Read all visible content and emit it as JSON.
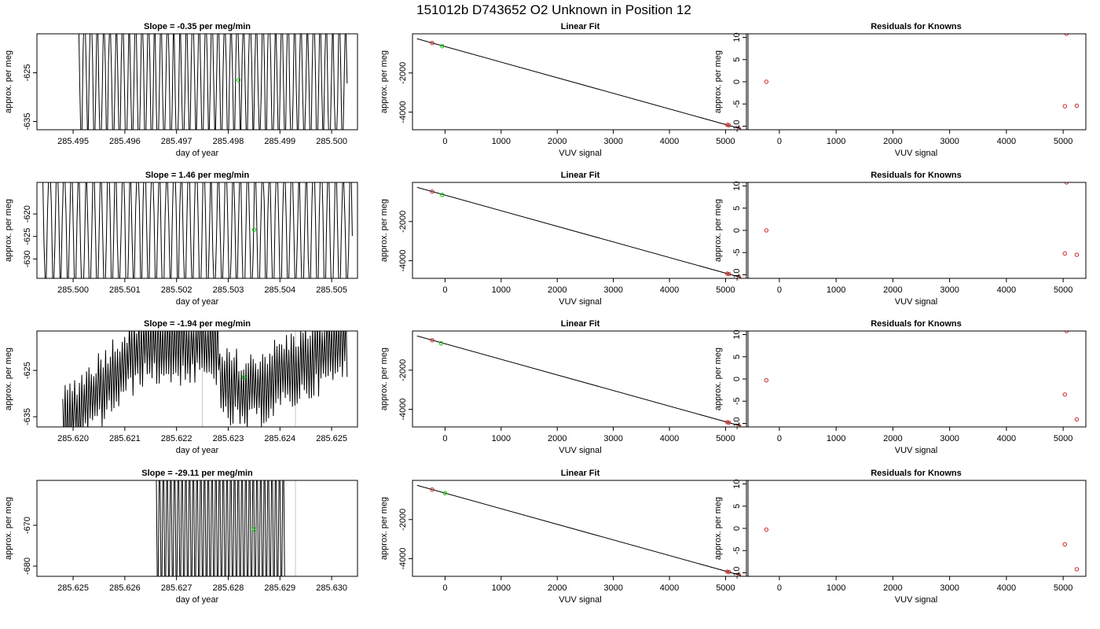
{
  "suptitle": "151012b      D743652    O2 Unknown in Position  12",
  "colors": {
    "line": "#000000",
    "known": "#cd2626",
    "unknown": "#00cc00",
    "gridline": "#c8c8c8"
  },
  "chart_data": [
    {
      "type": "line",
      "title": "Slope =  -0.35  per meg/min",
      "xlabel": "day of year",
      "ylabel": "approx. per meg",
      "xlim": [
        285.4943,
        285.5005
      ],
      "ylim": [
        -636.7,
        -617.0
      ],
      "xticks": [
        "285.495",
        "285.496",
        "285.497",
        "285.498",
        "285.499",
        "285.500"
      ],
      "yticks": [
        "-625",
        "-635"
      ],
      "gridlines_x": [],
      "start": 285.4951,
      "end": 285.5003,
      "mode": "spiky",
      "mean_point": {
        "x": 285.4982,
        "y": -626.5
      }
    },
    {
      "type": "scatter",
      "title": "Linear Fit",
      "xlabel": "VUV signal",
      "ylabel": "approx. per meg",
      "xlim": [
        -580,
        5400
      ],
      "ylim": [
        -4900,
        0
      ],
      "xticks": [
        "0",
        "1000",
        "2000",
        "3000",
        "4000",
        "5000"
      ],
      "yticks": [
        "-2000",
        "-4000"
      ],
      "fit_line": [
        [
          -500,
          -250
        ],
        [
          5270,
          -4850
        ]
      ],
      "knowns": [
        [
          -230,
          -470
        ],
        [
          5030,
          -4650
        ],
        [
          5060,
          -4670
        ],
        [
          5240,
          -4840
        ]
      ],
      "unknowns": [
        [
          -50,
          -630
        ]
      ]
    },
    {
      "type": "scatter",
      "title": "Residuals for Knowns",
      "xlabel": "VUV signal",
      "ylabel": "approx. per meg",
      "xlim": [
        -580,
        5400
      ],
      "ylim": [
        -10.8,
        10.8
      ],
      "xticks": [
        "0",
        "1000",
        "2000",
        "3000",
        "4000",
        "5000"
      ],
      "yticks": [
        "10",
        "5",
        "0",
        "-5",
        "-10"
      ],
      "knowns": [
        [
          -230,
          0
        ],
        [
          5030,
          -5.5
        ],
        [
          5060,
          10.8
        ],
        [
          5240,
          -5.4
        ]
      ]
    },
    {
      "type": "line",
      "title": "Slope =  1.46  per meg/min",
      "xlabel": "day of year",
      "ylabel": "approx. per meg",
      "xlim": [
        285.4993,
        285.5055
      ],
      "ylim": [
        -634.3,
        -613.0
      ],
      "xticks": [
        "285.500",
        "285.501",
        "285.502",
        "285.503",
        "285.504",
        "285.505"
      ],
      "yticks": [
        "-620",
        "-625",
        "-630"
      ],
      "gridlines_x": [],
      "start": 285.4994,
      "end": 285.5054,
      "mode": "spiky",
      "mean_point": {
        "x": 285.5035,
        "y": -623.5
      }
    },
    {
      "type": "scatter",
      "title": "Linear Fit",
      "xlabel": "VUV signal",
      "ylabel": "approx. per meg",
      "xlim": [
        -580,
        5400
      ],
      "ylim": [
        -4900,
        0
      ],
      "xticks": [
        "0",
        "1000",
        "2000",
        "3000",
        "4000",
        "5000"
      ],
      "yticks": [
        "-2000",
        "-4000"
      ],
      "fit_line": [
        [
          -500,
          -250
        ],
        [
          5270,
          -4850
        ]
      ],
      "knowns": [
        [
          -230,
          -470
        ],
        [
          5030,
          -4660
        ],
        [
          5060,
          -4680
        ],
        [
          5240,
          -4840
        ]
      ],
      "unknowns": [
        [
          -50,
          -640
        ]
      ]
    },
    {
      "type": "scatter",
      "title": "Residuals for Knowns",
      "xlabel": "VUV signal",
      "ylabel": "approx. per meg",
      "xlim": [
        -580,
        5400
      ],
      "ylim": [
        -10.8,
        10.8
      ],
      "xticks": [
        "0",
        "1000",
        "2000",
        "3000",
        "4000",
        "5000"
      ],
      "yticks": [
        "10",
        "5",
        "0",
        "-5",
        "-10"
      ],
      "knowns": [
        [
          -230,
          0
        ],
        [
          5030,
          -5.2
        ],
        [
          5060,
          10.8
        ],
        [
          5240,
          -5.5
        ]
      ]
    },
    {
      "type": "line",
      "title": "Slope =  -1.94  per meg/min",
      "xlabel": "day of year",
      "ylabel": "approx. per meg",
      "xlim": [
        285.6193,
        285.6255
      ],
      "ylim": [
        -637.2,
        -616.5
      ],
      "xticks": [
        "285.620",
        "285.621",
        "285.622",
        "285.623",
        "285.624",
        "285.625"
      ],
      "yticks": [
        "-625",
        "-635"
      ],
      "gridlines_x": [
        285.6225,
        285.6243
      ],
      "start": 285.6198,
      "end": 285.6253,
      "mode": "ramp",
      "mean_point": {
        "x": 285.6233,
        "y": -626.5
      }
    },
    {
      "type": "scatter",
      "title": "Linear Fit",
      "xlabel": "VUV signal",
      "ylabel": "approx. per meg",
      "xlim": [
        -580,
        5400
      ],
      "ylim": [
        -4900,
        0
      ],
      "xticks": [
        "0",
        "1000",
        "2000",
        "3000",
        "4000",
        "5000"
      ],
      "yticks": [
        "-2000",
        "-4000"
      ],
      "fit_line": [
        [
          -500,
          -250
        ],
        [
          5270,
          -4850
        ]
      ],
      "knowns": [
        [
          -230,
          -470
        ],
        [
          5030,
          -4660
        ],
        [
          5060,
          -4680
        ],
        [
          5240,
          -4840
        ]
      ],
      "unknowns": [
        [
          -70,
          -630
        ]
      ]
    },
    {
      "type": "scatter",
      "title": "Residuals for Knowns",
      "xlabel": "VUV signal",
      "ylabel": "approx. per meg",
      "xlim": [
        -580,
        5400
      ],
      "ylim": [
        -10.8,
        10.8
      ],
      "xticks": [
        "0",
        "1000",
        "2000",
        "3000",
        "4000",
        "5000"
      ],
      "yticks": [
        "10",
        "5",
        "0",
        "-5",
        "-10"
      ],
      "knowns": [
        [
          -230,
          -0.3
        ],
        [
          5030,
          -3.5
        ],
        [
          5060,
          10.8
        ],
        [
          5240,
          -9.1
        ]
      ]
    },
    {
      "type": "line",
      "title": "Slope =  -29.11  per meg/min",
      "xlabel": "day of year",
      "ylabel": "approx. per meg",
      "xlim": [
        285.6243,
        285.6305
      ],
      "ylim": [
        -682.5,
        -659.0
      ],
      "xticks": [
        "285.625",
        "285.626",
        "285.627",
        "285.628",
        "285.629",
        "285.630"
      ],
      "yticks": [
        "-670",
        "-680"
      ],
      "gridlines_x": [
        285.6276,
        285.6293
      ],
      "start": 285.6266,
      "end": 285.6291,
      "mode": "sparse",
      "mean_point": {
        "x": 285.6285,
        "y": -671.0
      }
    },
    {
      "type": "scatter",
      "title": "Linear Fit",
      "xlabel": "VUV signal",
      "ylabel": "approx. per meg",
      "xlim": [
        -580,
        5400
      ],
      "ylim": [
        -4900,
        0
      ],
      "xticks": [
        "0",
        "1000",
        "2000",
        "3000",
        "4000",
        "5000"
      ],
      "yticks": [
        "-2000",
        "-4000"
      ],
      "fit_line": [
        [
          -500,
          -250
        ],
        [
          5270,
          -4850
        ]
      ],
      "knowns": [
        [
          -230,
          -470
        ],
        [
          5030,
          -4660
        ],
        [
          5060,
          -4680
        ],
        [
          5240,
          -4840
        ]
      ],
      "unknowns": [
        [
          0,
          -650
        ]
      ]
    },
    {
      "type": "scatter",
      "title": "Residuals for Knowns",
      "xlabel": "VUV signal",
      "ylabel": "approx. per meg",
      "xlim": [
        -580,
        5400
      ],
      "ylim": [
        -10.8,
        10.8
      ],
      "xticks": [
        "0",
        "1000",
        "2000",
        "3000",
        "4000",
        "5000"
      ],
      "yticks": [
        "10",
        "5",
        "0",
        "-5",
        "-10"
      ],
      "knowns": [
        [
          -230,
          -0.3
        ],
        [
          5030,
          -3.6
        ],
        [
          5240,
          -9.2
        ]
      ]
    }
  ]
}
